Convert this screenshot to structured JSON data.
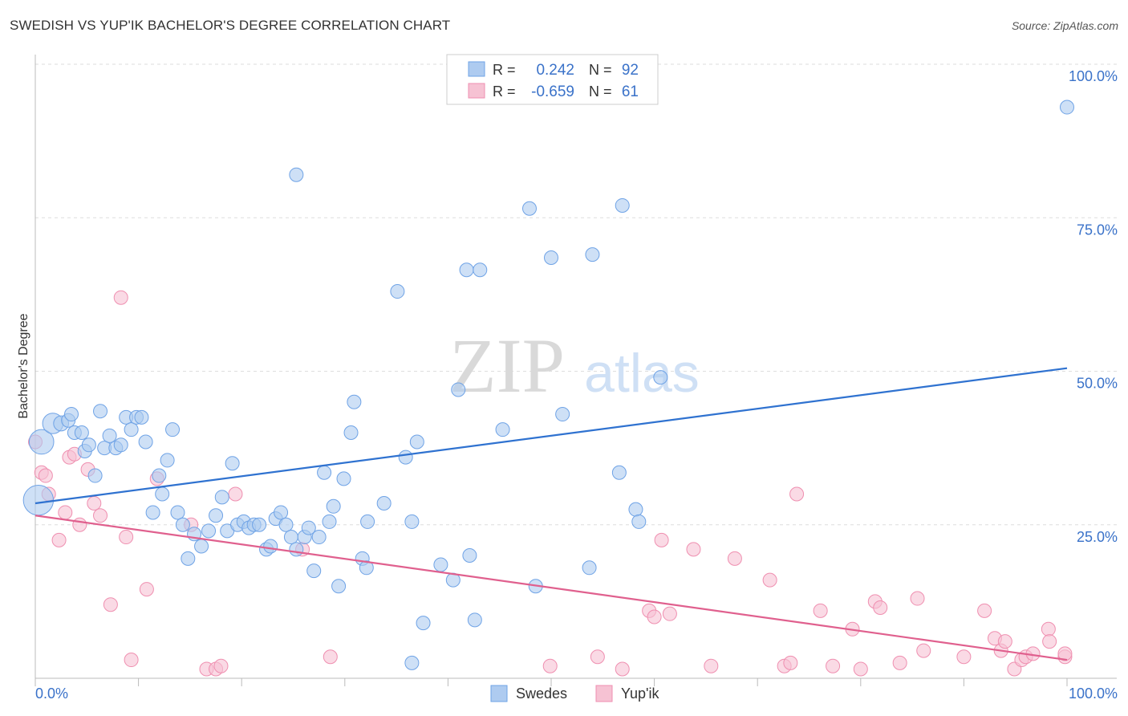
{
  "title": "SWEDISH VS YUP'IK BACHELOR'S DEGREE CORRELATION CHART",
  "source": "Source: ZipAtlas.com",
  "watermark": {
    "zip": "ZIP",
    "atlas": "atlas"
  },
  "legend_top": {
    "rows": [
      {
        "r_label": "R =",
        "r_value": "0.242",
        "n_label": "N =",
        "n_value": "92",
        "color": "#6fa3e6"
      },
      {
        "r_label": "R =",
        "r_value": "-0.659",
        "n_label": "N =",
        "n_value": "61",
        "color": "#ef8fb0"
      }
    ]
  },
  "legend_bottom": [
    {
      "label": "Swedes",
      "color": "#6fa3e6"
    },
    {
      "label": "Yup'ik",
      "color": "#ef8fb0"
    }
  ],
  "colors": {
    "swedes_fill": "#aecbf0",
    "swedes_stroke": "#6fa3e6",
    "swedes_line": "#2f72d0",
    "yupik_fill": "#f6c2d3",
    "yupik_stroke": "#ef8fb0",
    "yupik_line": "#e0608e",
    "tick_text": "#3a72c9",
    "grid": "#dddddd"
  },
  "chart_data": {
    "type": "scatter",
    "title": "SWEDISH VS YUP'IK BACHELOR'S DEGREE CORRELATION CHART",
    "xlabel": "",
    "ylabel": "Bachelor's Degree",
    "xlim": [
      0,
      100
    ],
    "ylim": [
      0,
      100
    ],
    "x_tick_labels": [
      "0.0%",
      "100.0%"
    ],
    "y_ticks": [
      25,
      50,
      75,
      100
    ],
    "y_tick_labels": [
      "25.0%",
      "50.0%",
      "75.0%",
      "100.0%"
    ],
    "grid": true,
    "legend_position": "top-center",
    "series": [
      {
        "name": "Swedes",
        "r": 0.242,
        "n": 92,
        "trend": {
          "x": [
            0,
            100
          ],
          "y": [
            28.5,
            50.5
          ]
        },
        "points": [
          [
            0.3,
            29.0,
            2.2
          ],
          [
            0.6,
            38.5,
            1.8
          ],
          [
            1.7,
            41.5,
            1.5
          ],
          [
            2.5,
            41.5,
            1.1
          ],
          [
            3.2,
            42.0,
            1.0
          ],
          [
            3.5,
            43.0,
            1.0
          ],
          [
            3.8,
            40.0,
            1.0
          ],
          [
            4.5,
            40.0,
            1.0
          ],
          [
            4.8,
            37.0,
            1.0
          ],
          [
            5.2,
            38.0,
            1.0
          ],
          [
            5.8,
            33.0,
            1.0
          ],
          [
            6.3,
            43.5,
            1.0
          ],
          [
            6.7,
            37.5,
            1.0
          ],
          [
            7.2,
            39.5,
            1.0
          ],
          [
            7.8,
            37.5,
            1.0
          ],
          [
            8.3,
            38.0,
            1.0
          ],
          [
            8.8,
            42.5,
            1.0
          ],
          [
            9.3,
            40.5,
            1.0
          ],
          [
            9.8,
            42.5,
            1.0
          ],
          [
            10.3,
            42.5,
            1.0
          ],
          [
            10.7,
            38.5,
            1.0
          ],
          [
            11.4,
            27.0,
            1.0
          ],
          [
            12.0,
            33.0,
            1.0
          ],
          [
            12.3,
            30.0,
            1.0
          ],
          [
            12.8,
            35.5,
            1.0
          ],
          [
            13.3,
            40.5,
            1.0
          ],
          [
            13.8,
            27.0,
            1.0
          ],
          [
            14.3,
            25.0,
            1.0
          ],
          [
            14.8,
            19.5,
            1.0
          ],
          [
            15.4,
            23.5,
            1.0
          ],
          [
            16.1,
            21.5,
            1.0
          ],
          [
            16.8,
            24.0,
            1.0
          ],
          [
            17.5,
            26.5,
            1.0
          ],
          [
            18.1,
            29.5,
            1.0
          ],
          [
            18.6,
            24.0,
            1.0
          ],
          [
            19.1,
            35.0,
            1.0
          ],
          [
            19.6,
            25.0,
            1.0
          ],
          [
            20.2,
            25.5,
            1.0
          ],
          [
            20.7,
            24.5,
            1.0
          ],
          [
            21.2,
            25.0,
            1.0
          ],
          [
            21.7,
            25.0,
            1.0
          ],
          [
            22.4,
            21.0,
            1.0
          ],
          [
            22.8,
            21.5,
            1.0
          ],
          [
            23.3,
            26.0,
            1.0
          ],
          [
            23.8,
            27.0,
            1.0
          ],
          [
            24.3,
            25.0,
            1.0
          ],
          [
            24.8,
            23.0,
            1.0
          ],
          [
            25.3,
            21.0,
            1.0
          ],
          [
            25.3,
            82.0,
            1.0
          ],
          [
            26.1,
            23.0,
            1.0
          ],
          [
            26.5,
            24.5,
            1.0
          ],
          [
            27.0,
            17.5,
            1.0
          ],
          [
            27.5,
            23.0,
            1.0
          ],
          [
            28.0,
            33.5,
            1.0
          ],
          [
            28.5,
            25.5,
            1.0
          ],
          [
            28.9,
            28.0,
            1.0
          ],
          [
            29.4,
            15.0,
            1.0
          ],
          [
            29.9,
            32.5,
            1.0
          ],
          [
            30.9,
            45.0,
            1.0
          ],
          [
            30.6,
            40.0,
            1.0
          ],
          [
            31.7,
            19.5,
            1.0
          ],
          [
            32.1,
            18.0,
            1.0
          ],
          [
            32.2,
            25.5,
            1.0
          ],
          [
            33.8,
            28.5,
            1.0
          ],
          [
            35.1,
            63.0,
            1.0
          ],
          [
            35.9,
            36.0,
            1.0
          ],
          [
            36.5,
            25.5,
            1.0
          ],
          [
            36.5,
            2.5,
            1.0
          ],
          [
            37.0,
            38.5,
            1.0
          ],
          [
            37.6,
            9.0,
            1.0
          ],
          [
            39.3,
            18.5,
            1.0
          ],
          [
            40.5,
            16.0,
            1.0
          ],
          [
            41.0,
            47.0,
            1.0
          ],
          [
            41.8,
            66.5,
            1.0
          ],
          [
            42.1,
            20.0,
            1.0
          ],
          [
            42.6,
            9.5,
            1.0
          ],
          [
            43.1,
            66.5,
            1.0
          ],
          [
            45.3,
            40.5,
            1.0
          ],
          [
            47.9,
            76.5,
            1.0
          ],
          [
            48.5,
            15.0,
            1.0
          ],
          [
            50.0,
            68.5,
            1.0
          ],
          [
            51.1,
            43.0,
            1.0
          ],
          [
            53.7,
            18.0,
            1.0
          ],
          [
            54.0,
            69.0,
            1.0
          ],
          [
            56.6,
            33.5,
            1.0
          ],
          [
            56.9,
            77.0,
            1.0
          ],
          [
            58.2,
            27.5,
            1.0
          ],
          [
            58.5,
            25.5,
            1.0
          ],
          [
            60.6,
            49.0,
            1.0
          ],
          [
            100.0,
            93.0,
            1.0
          ]
        ]
      },
      {
        "name": "Yup'ik",
        "r": -0.659,
        "n": 61,
        "trend": {
          "x": [
            0,
            100
          ],
          "y": [
            26.5,
            3.0
          ]
        },
        "points": [
          [
            0.0,
            38.5,
            1.0
          ],
          [
            0.6,
            33.5,
            1.0
          ],
          [
            1.0,
            33.0,
            1.0
          ],
          [
            1.3,
            30.0,
            1.0
          ],
          [
            2.3,
            22.5,
            1.0
          ],
          [
            2.9,
            27.0,
            1.0
          ],
          [
            3.3,
            36.0,
            1.0
          ],
          [
            3.8,
            36.5,
            1.0
          ],
          [
            4.3,
            25.0,
            1.0
          ],
          [
            5.1,
            34.0,
            1.0
          ],
          [
            5.7,
            28.5,
            1.0
          ],
          [
            6.3,
            26.5,
            1.0
          ],
          [
            7.3,
            12.0,
            1.0
          ],
          [
            8.3,
            62.0,
            1.0
          ],
          [
            8.8,
            23.0,
            1.0
          ],
          [
            9.3,
            3.0,
            1.0
          ],
          [
            10.8,
            14.5,
            1.0
          ],
          [
            11.8,
            32.5,
            1.0
          ],
          [
            15.1,
            25.0,
            1.0
          ],
          [
            16.6,
            1.5,
            1.0
          ],
          [
            17.5,
            1.5,
            1.0
          ],
          [
            18.0,
            2.0,
            1.0
          ],
          [
            19.4,
            30.0,
            1.0
          ],
          [
            25.9,
            21.0,
            1.0
          ],
          [
            28.6,
            3.5,
            1.0
          ],
          [
            49.9,
            2.0,
            1.0
          ],
          [
            54.5,
            3.5,
            1.0
          ],
          [
            56.9,
            1.5,
            1.0
          ],
          [
            59.5,
            11.0,
            1.0
          ],
          [
            60.0,
            10.0,
            1.0
          ],
          [
            60.7,
            22.5,
            1.0
          ],
          [
            61.5,
            10.5,
            1.0
          ],
          [
            63.8,
            21.0,
            1.0
          ],
          [
            65.5,
            2.0,
            1.0
          ],
          [
            67.8,
            19.5,
            1.0
          ],
          [
            71.2,
            16.0,
            1.0
          ],
          [
            72.6,
            2.0,
            1.0
          ],
          [
            73.2,
            2.5,
            1.0
          ],
          [
            73.8,
            30.0,
            1.0
          ],
          [
            76.1,
            11.0,
            1.0
          ],
          [
            77.3,
            2.0,
            1.0
          ],
          [
            79.2,
            8.0,
            1.0
          ],
          [
            80.0,
            1.5,
            1.0
          ],
          [
            81.4,
            12.5,
            1.0
          ],
          [
            81.9,
            11.5,
            1.0
          ],
          [
            83.8,
            2.5,
            1.0
          ],
          [
            85.5,
            13.0,
            1.0
          ],
          [
            86.1,
            4.5,
            1.0
          ],
          [
            90.0,
            3.5,
            1.0
          ],
          [
            92.0,
            11.0,
            1.0
          ],
          [
            93.0,
            6.5,
            1.0
          ],
          [
            93.6,
            4.5,
            1.0
          ],
          [
            94.0,
            6.0,
            1.0
          ],
          [
            94.9,
            1.5,
            1.0
          ],
          [
            95.6,
            3.0,
            1.0
          ],
          [
            96.0,
            3.5,
            1.0
          ],
          [
            96.7,
            4.0,
            1.0
          ],
          [
            98.2,
            8.0,
            1.0
          ],
          [
            98.3,
            6.0,
            1.0
          ],
          [
            99.8,
            3.5,
            1.0
          ],
          [
            99.8,
            4.0,
            1.0
          ]
        ]
      }
    ]
  }
}
